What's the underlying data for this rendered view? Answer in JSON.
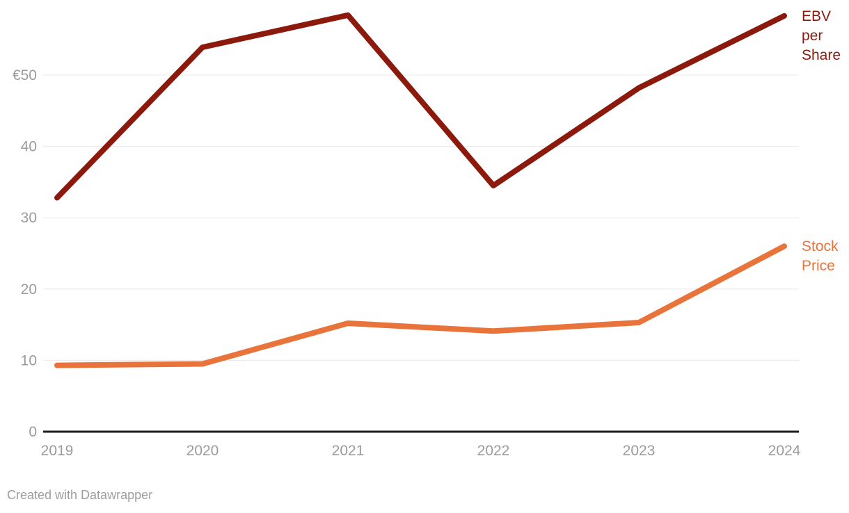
{
  "chart_data": {
    "type": "line",
    "x": [
      "2019",
      "2020",
      "2021",
      "2022",
      "2023",
      "2024"
    ],
    "series": [
      {
        "name": "EBV per Share",
        "label_lines": [
          "EBV",
          "per",
          "Share"
        ],
        "color": "#8B1A0D",
        "values": [
          32.8,
          53.9,
          58.4,
          34.5,
          48.2,
          58.3
        ]
      },
      {
        "name": "Stock Price",
        "label_lines": [
          "Stock",
          "Price"
        ],
        "color": "#E8743B",
        "values": [
          9.3,
          9.5,
          15.2,
          14.1,
          15.3,
          26.0
        ]
      }
    ],
    "y_ticks": [
      {
        "value": 0,
        "label": "0"
      },
      {
        "value": 10,
        "label": "10"
      },
      {
        "value": 20,
        "label": "20"
      },
      {
        "value": 30,
        "label": "30"
      },
      {
        "value": 40,
        "label": "40"
      },
      {
        "value": 50,
        "label": "€50"
      }
    ],
    "ylim": [
      0,
      60
    ],
    "grid": "horizontal-only",
    "legend_position": "right-end-of-lines"
  },
  "footer": {
    "attribution": "Created with Datawrapper"
  },
  "colors": {
    "ebv_line": "#8B1A0D",
    "stock_line": "#E8743B",
    "tick_text": "#9B9B9B",
    "gridline": "#E8E8E8",
    "axis_line": "#1D1D1D",
    "footer_text": "#9D9D9D",
    "background": "#FFFFFF"
  }
}
